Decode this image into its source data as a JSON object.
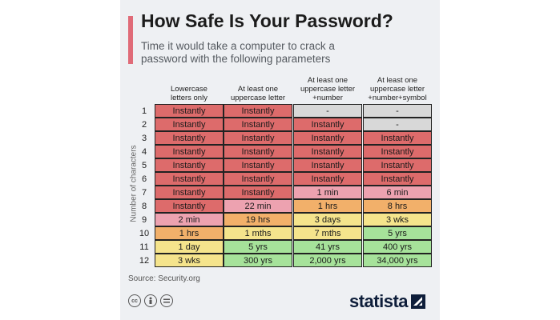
{
  "header": {
    "title": "How Safe Is Your Password?",
    "subtitle": "Time it would take a computer to crack a password with the following parameters"
  },
  "colors": {
    "accent": "#e06b78",
    "instantly": "#dd6b6b",
    "minutes": "#eda2b0",
    "hours": "#f2b06a",
    "days": "#f5e48c",
    "years": "#a6e29a",
    "na": "#d8d8d8",
    "brand": "#0e1e3a"
  },
  "chart_data": {
    "type": "table",
    "title": "How Safe Is Your Password?",
    "ylabel": "Number of characters",
    "columns": [
      "Lowercase letters only",
      "At least one uppercase letter",
      "At least one uppercase letter +number",
      "At least one uppercase letter +number+symbol"
    ],
    "rows": [
      {
        "label": "1",
        "values": [
          "Instantly",
          "Instantly",
          "-",
          "-"
        ],
        "colors": [
          "instantly",
          "instantly",
          "na",
          "na"
        ]
      },
      {
        "label": "2",
        "values": [
          "Instantly",
          "Instantly",
          "Instantly",
          "-"
        ],
        "colors": [
          "instantly",
          "instantly",
          "instantly",
          "na"
        ]
      },
      {
        "label": "3",
        "values": [
          "Instantly",
          "Instantly",
          "Instantly",
          "Instantly"
        ],
        "colors": [
          "instantly",
          "instantly",
          "instantly",
          "instantly"
        ]
      },
      {
        "label": "4",
        "values": [
          "Instantly",
          "Instantly",
          "Instantly",
          "Instantly"
        ],
        "colors": [
          "instantly",
          "instantly",
          "instantly",
          "instantly"
        ]
      },
      {
        "label": "5",
        "values": [
          "Instantly",
          "Instantly",
          "Instantly",
          "Instantly"
        ],
        "colors": [
          "instantly",
          "instantly",
          "instantly",
          "instantly"
        ]
      },
      {
        "label": "6",
        "values": [
          "Instantly",
          "Instantly",
          "Instantly",
          "Instantly"
        ],
        "colors": [
          "instantly",
          "instantly",
          "instantly",
          "instantly"
        ]
      },
      {
        "label": "7",
        "values": [
          "Instantly",
          "Instantly",
          "1 min",
          "6 min"
        ],
        "colors": [
          "instantly",
          "instantly",
          "minutes",
          "minutes"
        ]
      },
      {
        "label": "8",
        "values": [
          "Instantly",
          "22 min",
          "1 hrs",
          "8 hrs"
        ],
        "colors": [
          "instantly",
          "minutes",
          "hours",
          "hours"
        ]
      },
      {
        "label": "9",
        "values": [
          "2 min",
          "19 hrs",
          "3 days",
          "3 wks"
        ],
        "colors": [
          "minutes",
          "hours",
          "days",
          "days"
        ]
      },
      {
        "label": "10",
        "values": [
          "1 hrs",
          "1 mths",
          "7 mths",
          "5 yrs"
        ],
        "colors": [
          "hours",
          "days",
          "days",
          "years"
        ]
      },
      {
        "label": "11",
        "values": [
          "1 day",
          "5 yrs",
          "41 yrs",
          "400 yrs"
        ],
        "colors": [
          "days",
          "years",
          "years",
          "years"
        ]
      },
      {
        "label": "12",
        "values": [
          "3 wks",
          "300 yrs",
          "2,000 yrs",
          "34,000 yrs"
        ],
        "colors": [
          "days",
          "years",
          "years",
          "years"
        ]
      }
    ]
  },
  "footer": {
    "source": "Source: Security.org",
    "brand": "statista",
    "license_icons": [
      "cc-icon",
      "attribution-icon",
      "no-derivatives-icon"
    ]
  }
}
